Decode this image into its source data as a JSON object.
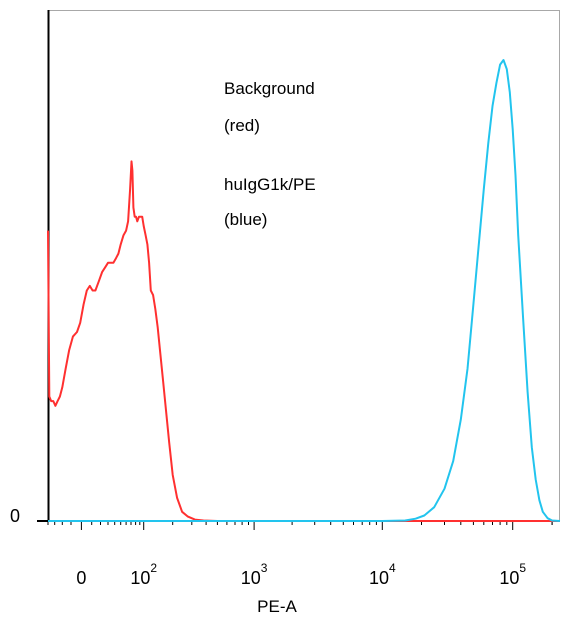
{
  "chart_data": {
    "type": "line",
    "title": "",
    "xlabel": "PE-A",
    "ylabel": "",
    "x_scale": "biexponential",
    "xlim": [
      -40,
      230000
    ],
    "y_tick_labels": [
      "0"
    ],
    "x_tick_labels": [
      {
        "x": 0,
        "base": "0",
        "exp": ""
      },
      {
        "x": 100,
        "base": "10",
        "exp": "2"
      },
      {
        "x": 1000,
        "base": "10",
        "exp": "3"
      },
      {
        "x": 10000,
        "base": "10",
        "exp": "4"
      },
      {
        "x": 100000,
        "base": "10",
        "exp": "5"
      }
    ],
    "annotations": [
      "Background",
      "(red)",
      "huIgG1k/PE",
      "(blue)"
    ],
    "grid": false,
    "series": [
      {
        "color": "#ff3030",
        "points": [
          [
            -40,
            0.63
          ],
          [
            -38,
            0.27
          ],
          [
            -35,
            0.26
          ],
          [
            -32,
            0.26
          ],
          [
            -29,
            0.25
          ],
          [
            -26,
            0.26
          ],
          [
            -23,
            0.27
          ],
          [
            -20,
            0.29
          ],
          [
            -16,
            0.33
          ],
          [
            -12,
            0.37
          ],
          [
            -8,
            0.4
          ],
          [
            -4,
            0.41
          ],
          [
            -1,
            0.43
          ],
          [
            2,
            0.47
          ],
          [
            5,
            0.5
          ],
          [
            8,
            0.51
          ],
          [
            11,
            0.5
          ],
          [
            14,
            0.5
          ],
          [
            18,
            0.52
          ],
          [
            22,
            0.54
          ],
          [
            26,
            0.55
          ],
          [
            30,
            0.56
          ],
          [
            34,
            0.56
          ],
          [
            38,
            0.56
          ],
          [
            42,
            0.57
          ],
          [
            46,
            0.58
          ],
          [
            50,
            0.6
          ],
          [
            55,
            0.62
          ],
          [
            60,
            0.63
          ],
          [
            64,
            0.65
          ],
          [
            68,
            0.72
          ],
          [
            71,
            0.78
          ],
          [
            73,
            0.76
          ],
          [
            75,
            0.68
          ],
          [
            78,
            0.66
          ],
          [
            81,
            0.66
          ],
          [
            84,
            0.65
          ],
          [
            88,
            0.66
          ],
          [
            92,
            0.66
          ],
          [
            96,
            0.66
          ],
          [
            100,
            0.64
          ],
          [
            105,
            0.62
          ],
          [
            110,
            0.6
          ],
          [
            115,
            0.56
          ],
          [
            120,
            0.5
          ],
          [
            127,
            0.49
          ],
          [
            134,
            0.46
          ],
          [
            142,
            0.42
          ],
          [
            150,
            0.37
          ],
          [
            160,
            0.31
          ],
          [
            172,
            0.24
          ],
          [
            185,
            0.17
          ],
          [
            200,
            0.1
          ],
          [
            220,
            0.05
          ],
          [
            245,
            0.02
          ],
          [
            275,
            0.01
          ],
          [
            320,
            0.003
          ],
          [
            380,
            0.001
          ],
          [
            500,
            0
          ],
          [
            1000,
            0
          ],
          [
            10000,
            0
          ],
          [
            230000,
            0
          ]
        ]
      },
      {
        "color": "#22c4ee",
        "points": [
          [
            -40,
            0
          ],
          [
            1000,
            0
          ],
          [
            10000,
            0
          ],
          [
            15000,
            0.001
          ],
          [
            18000,
            0.005
          ],
          [
            21000,
            0.012
          ],
          [
            25000,
            0.03
          ],
          [
            30000,
            0.07
          ],
          [
            35000,
            0.13
          ],
          [
            40000,
            0.22
          ],
          [
            45000,
            0.33
          ],
          [
            50000,
            0.47
          ],
          [
            55000,
            0.6
          ],
          [
            60000,
            0.72
          ],
          [
            65000,
            0.82
          ],
          [
            70000,
            0.9
          ],
          [
            75000,
            0.95
          ],
          [
            80000,
            0.99
          ],
          [
            85000,
            1.0
          ],
          [
            90000,
            0.98
          ],
          [
            95000,
            0.93
          ],
          [
            100000,
            0.85
          ],
          [
            105000,
            0.75
          ],
          [
            110000,
            0.62
          ],
          [
            120000,
            0.44
          ],
          [
            130000,
            0.28
          ],
          [
            140000,
            0.16
          ],
          [
            150000,
            0.09
          ],
          [
            160000,
            0.045
          ],
          [
            170000,
            0.02
          ],
          [
            185000,
            0.006
          ],
          [
            200000,
            0.001
          ],
          [
            230000,
            0
          ]
        ]
      }
    ]
  }
}
